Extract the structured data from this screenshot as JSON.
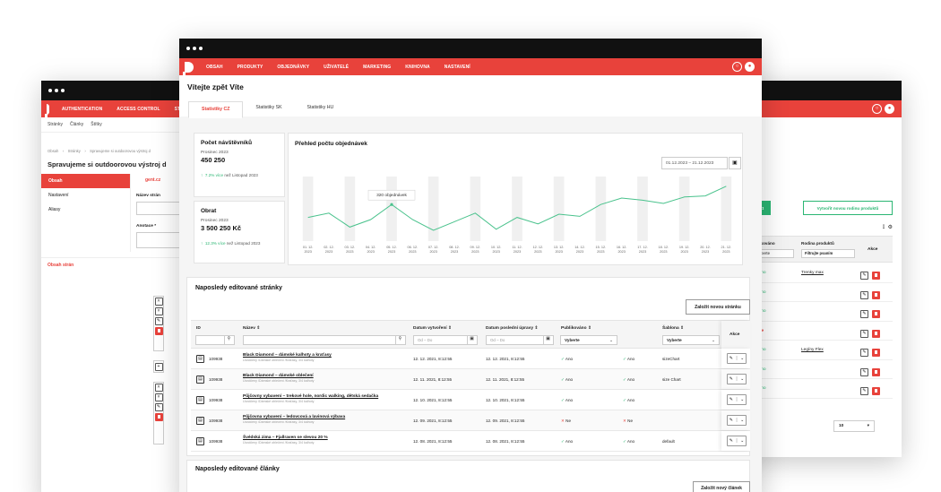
{
  "left_window": {
    "nav": [
      "AUTHENTICATION",
      "ACCESS CONTROL",
      "STORAGE"
    ],
    "subnav": [
      "Stránky",
      "Články",
      "Štítky"
    ],
    "breadcrumb": [
      "Obsah",
      "Stránky",
      "Spravujeme si outdoorovou výstroj d"
    ],
    "title": "Spravujeme si outdoorovou výstroj d",
    "side": [
      {
        "label": "Obsah",
        "active": true
      },
      {
        "label": "Nastavení",
        "active": false
      },
      {
        "label": "Aliasy",
        "active": false
      }
    ],
    "tab_lang": "gent.cz",
    "field_name": "Název strán",
    "field_annot": "Anotace *",
    "content_label": "Obsah strán"
  },
  "right_window": {
    "btn_red": "ový produkt",
    "btn_green": "Vytvořit novou rodinu produktů",
    "col_pub": "likováno",
    "col_pub_filter": "berte",
    "col_family": "Rodina produktů",
    "col_family_filter": "Filtrujte psaním",
    "col_actions": "Akce",
    "rows": [
      {
        "pub": "Ano",
        "family": "Trenky max"
      },
      {
        "pub": "Ano",
        "family": ""
      },
      {
        "pub": "Ano",
        "family": ""
      },
      {
        "pub": "Ne",
        "family": ""
      },
      {
        "pub": "Ano",
        "family": "Legíny Flex"
      },
      {
        "pub": "Ano",
        "family": ""
      },
      {
        "pub": "Ano",
        "family": ""
      }
    ],
    "page_size": "10"
  },
  "main": {
    "nav": [
      "OBSAH",
      "PRODUKTY",
      "OBJEDNÁVKY",
      "UŽIVATELÉ",
      "MARKETING",
      "KNIHOVNA",
      "NASTAVENÍ"
    ],
    "welcome": "Vítejte zpět Víte",
    "tabs": [
      "Statistiky CZ",
      "Statistiky SK",
      "Statistiky HU"
    ],
    "visits": {
      "title": "Počet návštěvníků",
      "period": "Prosinec 2023",
      "value": "450 250",
      "delta": "7.2% více",
      "delta_suffix": "než Listopad 2023"
    },
    "turnover": {
      "title": "Obrat",
      "period": "Prosinec 2023",
      "value": "3 500 250 Kč",
      "delta": "12.3% více",
      "delta_suffix": "než Listopad 2023"
    },
    "chart_title": "Přehled počtu objednávek",
    "date_range": "01.12.2023 – 21.12.2023",
    "edited_pages_title": "Naposledy editované stránky",
    "new_page_btn": "Založit novou stránku",
    "table": {
      "headers": [
        "ID",
        "Název",
        "Datum vytvoření",
        "Datum poslední úpravy",
        "Publikováno",
        "",
        "Šablona",
        "Akce"
      ],
      "date_placeholder": "Od – Do",
      "select_placeholder": "Vyberte",
      "rows": [
        {
          "id": "109938",
          "name": "Black Diamond – dámské kalhoty a kraťasy",
          "path": "Úvodčeny /Dámské oblečení /Kraťasy, 3/4 kalhoty",
          "created": "12. 12. 2021, 8:12:55",
          "updated": "12. 12. 2021, 8:12:55",
          "pub": "Ano",
          "pub_ok": true,
          "vis": "Ano",
          "vis_ok": true,
          "tpl": "sizeChart"
        },
        {
          "id": "109938",
          "name": "Black Diamond – dámské oblečení",
          "path": "Úvodčeny /Dámské oblečení /Kraťasy, 3/4 kalhoty",
          "created": "12. 11. 2021, 8:12:55",
          "updated": "12. 11. 2021, 8:12:55",
          "pub": "Ano",
          "pub_ok": true,
          "vis": "Ano",
          "vis_ok": true,
          "tpl": "size Chart"
        },
        {
          "id": "109938",
          "name": "Půjčovny vybavení – trekové hole, nordic walking, dětská sedačka",
          "path": "Úvodčeny /Dámské oblečení /Kraťasy, 3/4 kalhoty",
          "created": "12. 10. 2021, 8:12:55",
          "updated": "12. 10. 2021, 8:12:55",
          "pub": "Ano",
          "pub_ok": true,
          "vis": "Ano",
          "vis_ok": true,
          "tpl": ""
        },
        {
          "id": "109938",
          "name": "Půjčovna vybavení – ledovcová a lavinová výbava",
          "path": "Úvodčeny /Dámské oblečení /Kraťasy, 3/4 kalhoty",
          "created": "12. 09. 2021, 8:12:55",
          "updated": "12. 09. 2021, 8:12:55",
          "pub": "Ne",
          "pub_ok": false,
          "vis": "Ne",
          "vis_ok": false,
          "tpl": ""
        },
        {
          "id": "109938",
          "name": "Švédská zima – Fjallraven se slevou 20 %",
          "path": "Úvodčeny /Dámské oblečení /Kraťasy, 3/4 kalhoty",
          "created": "12. 08. 2021, 8:12:55",
          "updated": "12. 08. 2021, 8:12:55",
          "pub": "Ano",
          "pub_ok": true,
          "vis": "Ano",
          "vis_ok": true,
          "tpl": "default"
        }
      ]
    },
    "edited_articles_title": "Naposledy editované články",
    "new_article_btn": "Založit nový článek"
  },
  "chart_data": {
    "type": "line",
    "title": "Přehled počtu objednávek",
    "categories": [
      "01. 12. 2023",
      "02. 12. 2023",
      "03. 12. 2023",
      "04. 12. 2023",
      "05. 12. 2023",
      "06. 12. 2023",
      "07. 12. 2023",
      "08. 12. 2023",
      "09. 12. 2023",
      "10. 12. 2023",
      "11. 12. 2023",
      "12. 12. 2023",
      "13. 12. 2023",
      "14. 12. 2023",
      "15. 12. 2023",
      "16. 12. 2023",
      "17. 12. 2023",
      "18. 12. 2023",
      "19. 12. 2023",
      "20. 12. 2023",
      "21. 12. 2023"
    ],
    "values": [
      260,
      280,
      215,
      250,
      320,
      250,
      200,
      240,
      280,
      205,
      260,
      230,
      275,
      265,
      320,
      350,
      340,
      325,
      355,
      360,
      405
    ],
    "ylim": [
      150,
      450
    ],
    "tooltip": "320 objednávek",
    "color": "#49c28c"
  }
}
